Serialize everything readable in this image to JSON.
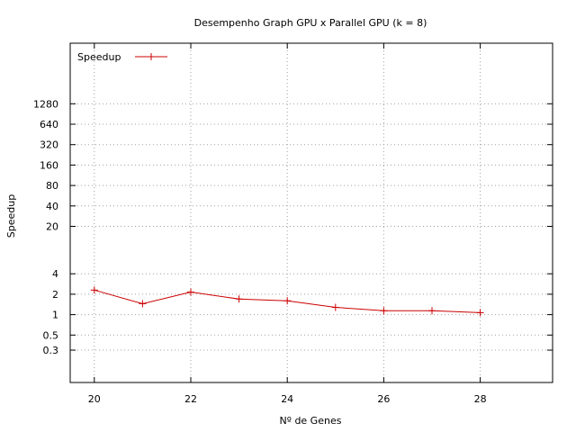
{
  "chart_data": {
    "type": "line",
    "title": "Desempenho Graph GPU x Parallel GPU (k = 8)",
    "xlabel": "Nº de Genes",
    "ylabel": "Speedup",
    "xlim": [
      19.5,
      29.5
    ],
    "ylim": [
      0.1,
      10000
    ],
    "yscale": "log",
    "grid": true,
    "legend_position": "top-left",
    "x_ticks": [
      20,
      22,
      24,
      26,
      28
    ],
    "x_tick_labels": [
      "20",
      "22",
      "24",
      "26",
      "28"
    ],
    "y_ticks": [
      0.3,
      0.5,
      1,
      2,
      4,
      20,
      40,
      80,
      160,
      320,
      640,
      1280
    ],
    "y_tick_labels": [
      "0.3",
      "0.5",
      "1",
      "2",
      "4",
      "20",
      "40",
      "80",
      "160",
      "320",
      "640",
      "1280"
    ],
    "x": [
      20,
      21,
      22,
      23,
      24,
      25,
      26,
      27,
      28
    ],
    "series": [
      {
        "name": "Speedup",
        "color": "#cc0000",
        "values": [
          2.3,
          1.45,
          2.15,
          1.7,
          1.6,
          1.28,
          1.14,
          1.14,
          1.07
        ]
      }
    ]
  }
}
